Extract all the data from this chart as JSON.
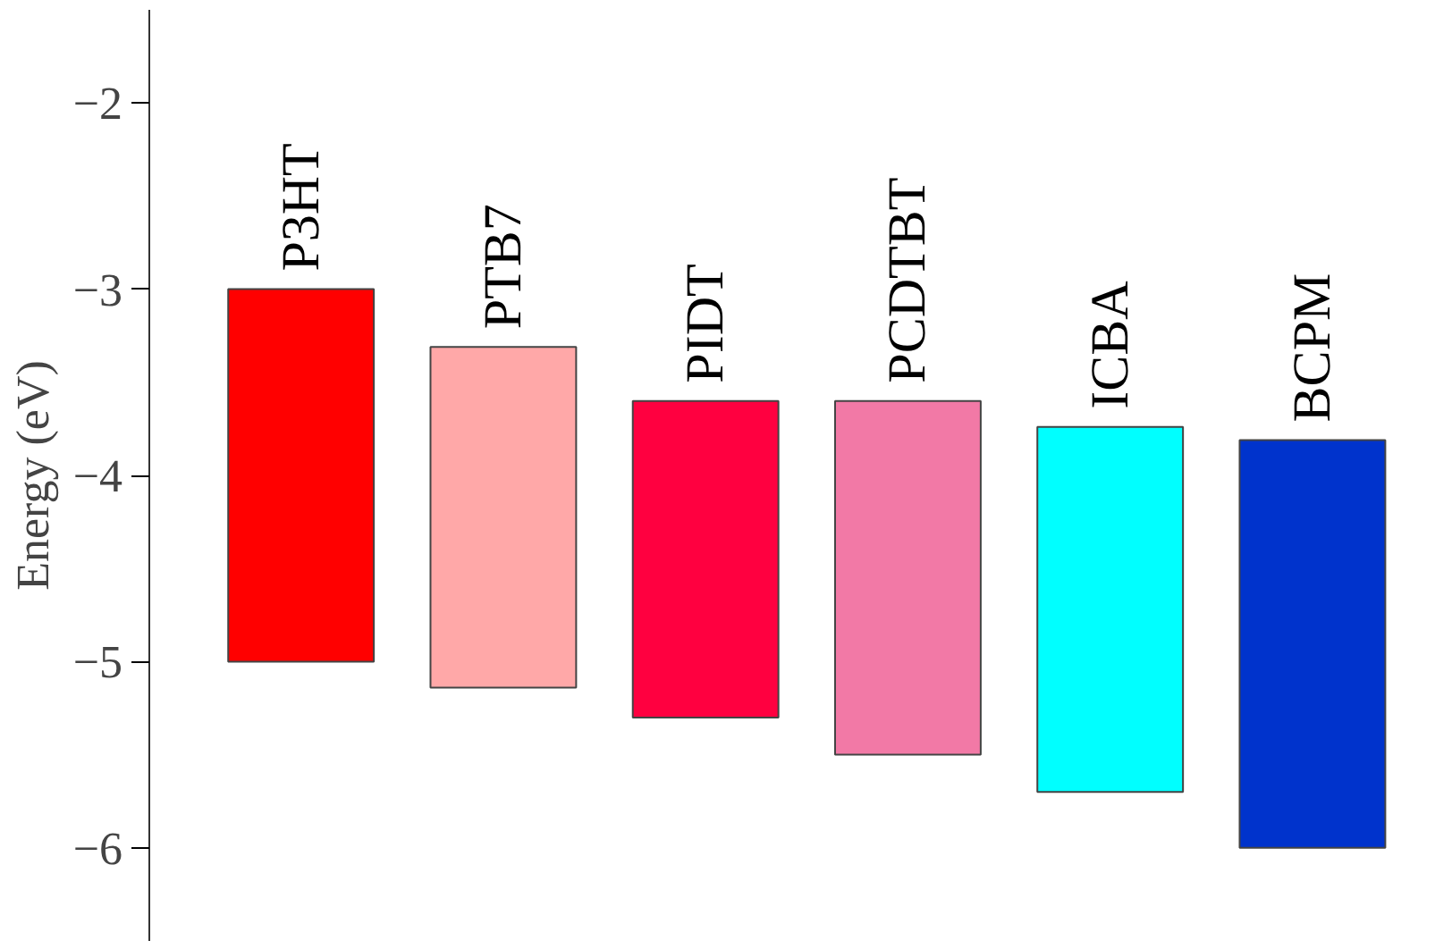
{
  "chart_data": {
    "type": "bar",
    "ylabel": "Energy (eV)",
    "categories": [
      "P3HT",
      "PTB7",
      "PIDT",
      "PCDTBT",
      "ICBA",
      "BCPM"
    ],
    "base": [
      -5.0,
      -5.14,
      -5.3,
      -5.5,
      -5.7,
      -6.0
    ],
    "values": [
      2.0,
      1.83,
      1.7,
      1.9,
      1.96,
      2.19
    ],
    "colors": [
      "#ff0000",
      "#ffa8a8",
      "#ff0040",
      "#f279a6",
      "#00ffff",
      "#0033cc"
    ],
    "ylim": [
      -6.5,
      -1.5
    ],
    "yticks": [
      -2,
      -3,
      -4,
      -5,
      -6
    ],
    "grid": false,
    "tick_labels": "y"
  }
}
